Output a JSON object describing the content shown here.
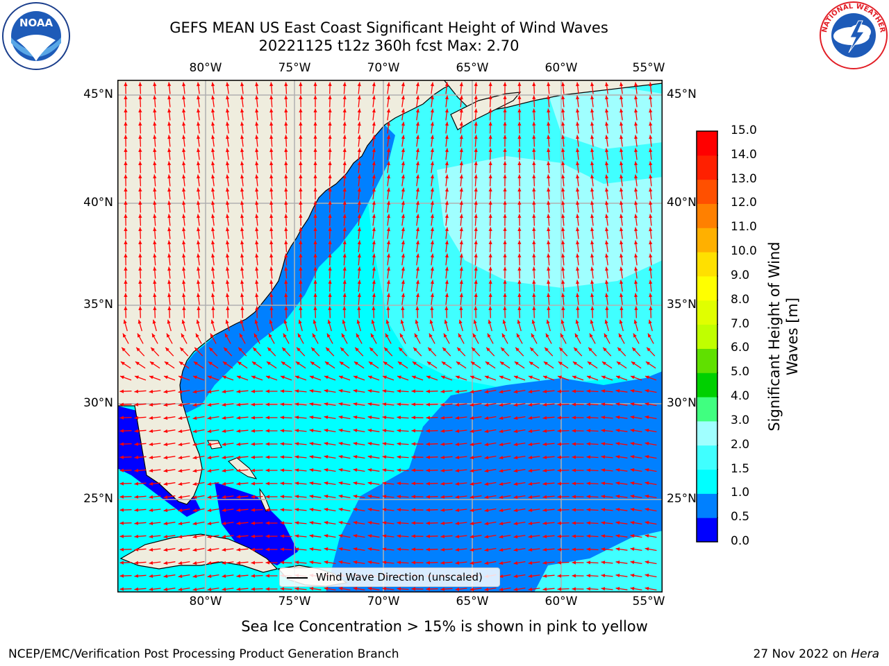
{
  "header": {
    "title": "GEFS MEAN US East Coast Significant Height of Wind Waves",
    "subtitle": "20221125 t12z 360h fcst   Max: 2.70"
  },
  "logos": {
    "left": {
      "name": "noaa-logo",
      "text": "NOAA",
      "ring_text": "NATIONAL OCEANIC AND ATMOSPHERIC ADMINISTRATION · U.S. DEPARTMENT OF COMMERCE"
    },
    "right": {
      "name": "nws-logo",
      "ring_text": "NATIONAL WEATHER SERVICE"
    }
  },
  "map": {
    "lon_labels": [
      "80°W",
      "75°W",
      "70°W",
      "65°W",
      "60°W",
      "55°W"
    ],
    "lat_labels": [
      "45°N",
      "40°N",
      "35°N",
      "30°N",
      "25°N"
    ],
    "legend_label": "Wind Wave Direction (unscaled)",
    "colors": {
      "land": "#efedde",
      "coast": "#000000",
      "grid": "#b0b0b0",
      "arrow": "#ff0000"
    }
  },
  "colorbar": {
    "label": "Significant Height of Wind Waves [m]",
    "ticks": [
      "0.0",
      "0.5",
      "1.0",
      "1.5",
      "2.0",
      "3.0",
      "4.0",
      "5.0",
      "6.0",
      "7.0",
      "8.0",
      "9.0",
      "10.0",
      "11.0",
      "12.0",
      "13.0",
      "14.0",
      "15.0"
    ],
    "colors": [
      "#0000ff",
      "#0080ff",
      "#00ffff",
      "#40ffff",
      "#a0ffff",
      "#40ff80",
      "#00d000",
      "#60e000",
      "#c0ff00",
      "#e0ff00",
      "#ffff00",
      "#ffe000",
      "#ffb000",
      "#ff8000",
      "#ff5000",
      "#ff2000",
      "#ff0000"
    ]
  },
  "note": "Sea Ice Concentration > 15% is shown in pink to yellow",
  "footer": {
    "left": "NCEP/EMC/Verification Post Processing Product Generation Branch",
    "date": "27 Nov 2022 on ",
    "machine": "Hera"
  }
}
